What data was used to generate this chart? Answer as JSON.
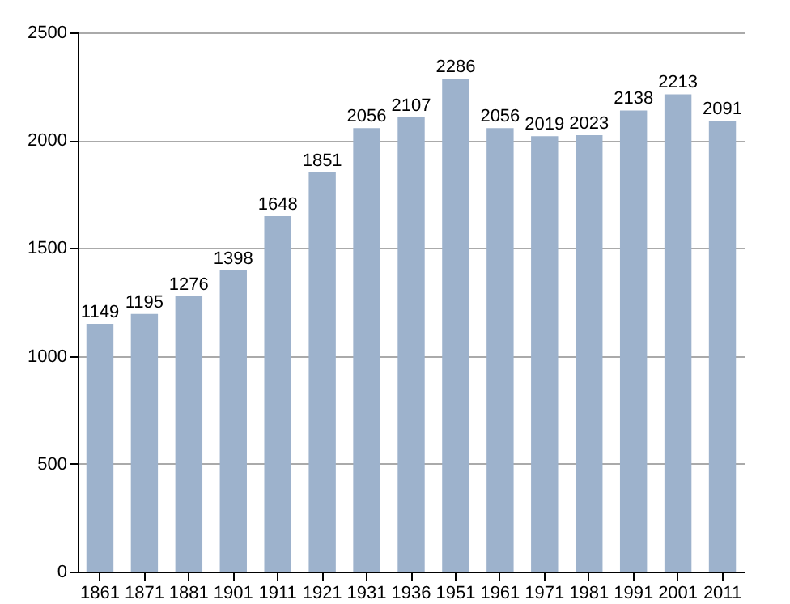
{
  "chart_data": {
    "type": "bar",
    "categories": [
      "1861",
      "1871",
      "1881",
      "1901",
      "1911",
      "1921",
      "1931",
      "1936",
      "1951",
      "1961",
      "1971",
      "1981",
      "1991",
      "2001",
      "2011"
    ],
    "values": [
      1149,
      1195,
      1276,
      1398,
      1648,
      1851,
      2056,
      2107,
      2286,
      2056,
      2019,
      2023,
      2138,
      2213,
      2091
    ],
    "color": "#9db2cc",
    "ylim": [
      0,
      2500
    ],
    "yticks": [
      0,
      500,
      1000,
      1500,
      2000,
      2500
    ],
    "grid": "y",
    "data_labels": true
  }
}
